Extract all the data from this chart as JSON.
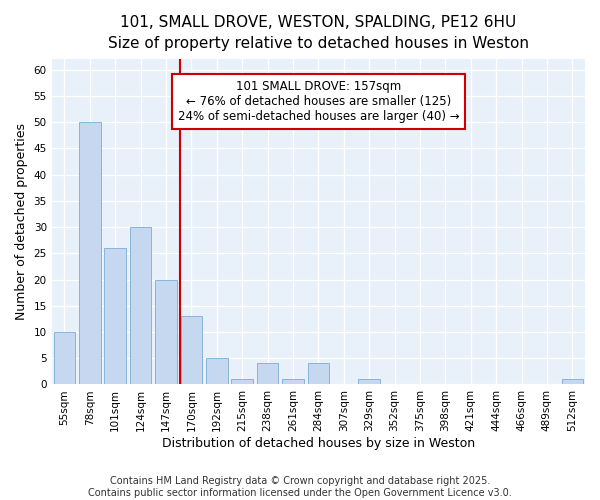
{
  "title1": "101, SMALL DROVE, WESTON, SPALDING, PE12 6HU",
  "title2": "Size of property relative to detached houses in Weston",
  "xlabel": "Distribution of detached houses by size in Weston",
  "ylabel": "Number of detached properties",
  "categories": [
    "55sqm",
    "78sqm",
    "101sqm",
    "124sqm",
    "147sqm",
    "170sqm",
    "192sqm",
    "215sqm",
    "238sqm",
    "261sqm",
    "284sqm",
    "307sqm",
    "329sqm",
    "352sqm",
    "375sqm",
    "398sqm",
    "421sqm",
    "444sqm",
    "466sqm",
    "489sqm",
    "512sqm"
  ],
  "values": [
    10,
    50,
    26,
    30,
    20,
    13,
    5,
    1,
    4,
    1,
    4,
    0,
    1,
    0,
    0,
    0,
    0,
    0,
    0,
    0,
    1
  ],
  "bar_color": "#c5d8f0",
  "bar_edge_color": "#7aadd4",
  "fig_background": "#ffffff",
  "ax_background": "#e8f0fa",
  "grid_color": "#ffffff",
  "vline_x_index": 4.57,
  "vline_color": "#cc0000",
  "annotation_line1": "101 SMALL DROVE: 157sqm",
  "annotation_line2": "← 76% of detached houses are smaller (125)",
  "annotation_line3": "24% of semi-detached houses are larger (40) →",
  "annotation_box_edge_color": "#cc0000",
  "ylim": [
    0,
    62
  ],
  "yticks": [
    0,
    5,
    10,
    15,
    20,
    25,
    30,
    35,
    40,
    45,
    50,
    55,
    60
  ],
  "footer": "Contains HM Land Registry data © Crown copyright and database right 2025.\nContains public sector information licensed under the Open Government Licence v3.0.",
  "title_fontsize": 11,
  "subtitle_fontsize": 10,
  "tick_fontsize": 7.5,
  "label_fontsize": 9,
  "annotation_fontsize": 8.5,
  "footer_fontsize": 7
}
